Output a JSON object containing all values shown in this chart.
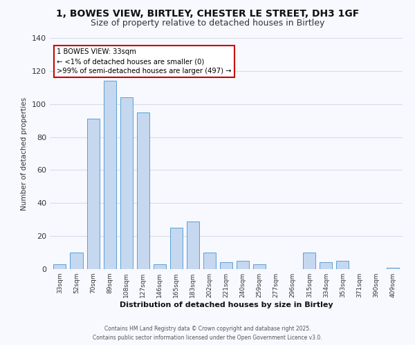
{
  "title1": "1, BOWES VIEW, BIRTLEY, CHESTER LE STREET, DH3 1GF",
  "title2": "Size of property relative to detached houses in Birtley",
  "xlabel": "Distribution of detached houses by size in Birtley",
  "ylabel": "Number of detached properties",
  "categories": [
    "33sqm",
    "52sqm",
    "70sqm",
    "89sqm",
    "108sqm",
    "127sqm",
    "146sqm",
    "165sqm",
    "183sqm",
    "202sqm",
    "221sqm",
    "240sqm",
    "259sqm",
    "277sqm",
    "296sqm",
    "315sqm",
    "334sqm",
    "353sqm",
    "371sqm",
    "390sqm",
    "409sqm"
  ],
  "values": [
    3,
    10,
    91,
    114,
    104,
    95,
    3,
    25,
    29,
    10,
    4,
    5,
    3,
    0,
    0,
    10,
    4,
    5,
    0,
    0,
    1
  ],
  "bar_color": "#c5d8f0",
  "bar_edge_color": "#5a9fd4",
  "annotation_title": "1 BOWES VIEW: 33sqm",
  "annotation_line1": "← <1% of detached houses are smaller (0)",
  "annotation_line2": ">99% of semi-detached houses are larger (497) →",
  "annotation_box_color": "#ffffff",
  "annotation_border_color": "#cc0000",
  "ylim": [
    0,
    140
  ],
  "footer1": "Contains HM Land Registry data © Crown copyright and database right 2025.",
  "footer2": "Contains public sector information licensed under the Open Government Licence v3.0.",
  "bg_color": "#f7f9ff",
  "grid_color": "#d8dce8",
  "title_fontsize": 10,
  "subtitle_fontsize": 9
}
